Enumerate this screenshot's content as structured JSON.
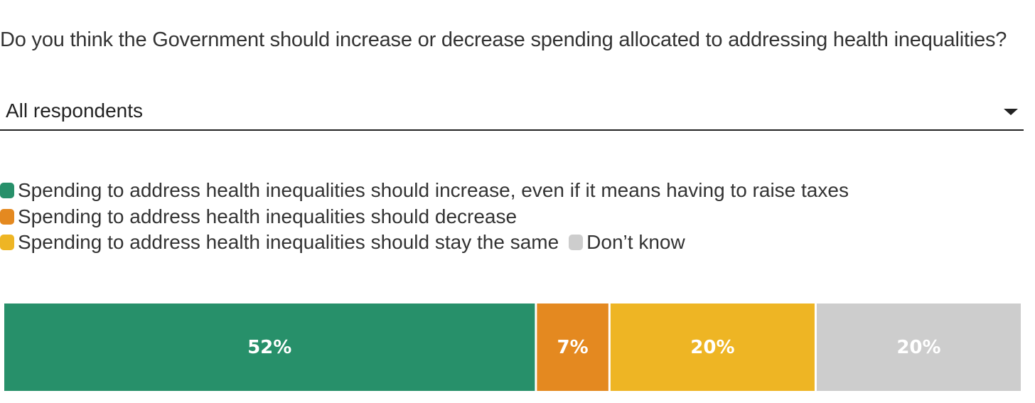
{
  "question": "Do you think the Government should increase or decrease spending allocated to addressing health inequalities?",
  "filter": {
    "selected": "All respondents"
  },
  "chart_data": {
    "type": "bar",
    "orientation": "horizontal-stacked",
    "unit": "%",
    "categories": [
      "All respondents"
    ],
    "series": [
      {
        "name": "Spending to address health inequalities should increase, even if it means having to raise taxes",
        "values": [
          52
        ],
        "label": "52%",
        "color": "#27906a"
      },
      {
        "name": "Spending to address health inequalities should decrease",
        "values": [
          7
        ],
        "label": "7%",
        "color": "#e48920"
      },
      {
        "name": "Spending to address health inequalities should stay the same",
        "values": [
          20
        ],
        "label": "20%",
        "color": "#eeb524"
      },
      {
        "name": "Don’t know",
        "values": [
          20
        ],
        "label": "20%",
        "color": "#cdcdcd"
      }
    ],
    "legend_placement": "top-left",
    "grid": false
  }
}
